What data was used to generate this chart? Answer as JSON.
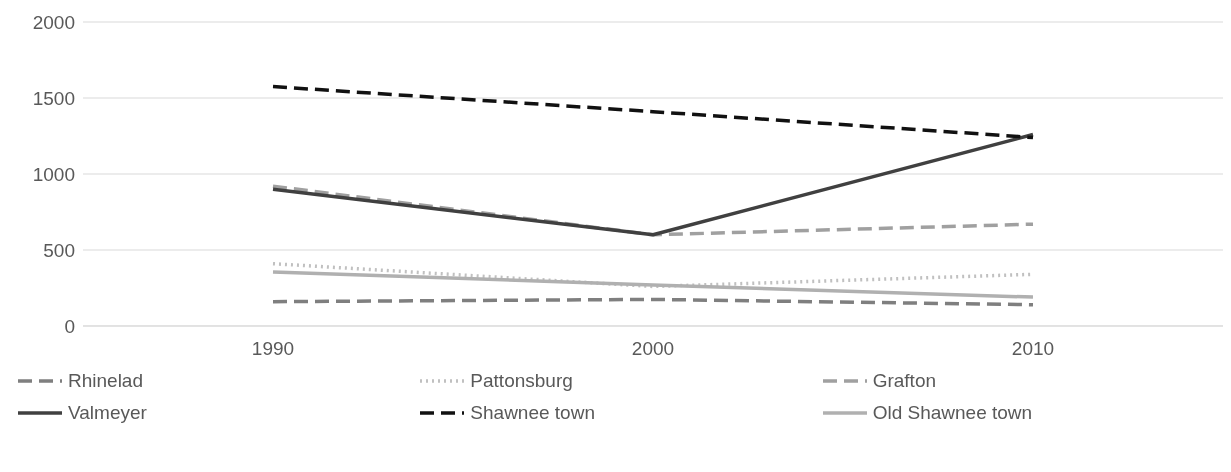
{
  "chart_data": {
    "type": "line",
    "categories": [
      "1990",
      "2000",
      "2010"
    ],
    "series": [
      {
        "name": "Rhinelad",
        "color": "#7f7f7f",
        "line_style": "dashed",
        "values": [
          160,
          175,
          140
        ]
      },
      {
        "name": "Pattonsburg",
        "color": "#c0c0c0",
        "line_style": "dotted",
        "values": [
          410,
          260,
          340
        ]
      },
      {
        "name": "Grafton",
        "color": "#a0a0a0",
        "line_style": "dashed",
        "values": [
          920,
          600,
          670
        ]
      },
      {
        "name": "Valmeyer",
        "color": "#404040",
        "line_style": "solid",
        "values": [
          900,
          600,
          1260
        ]
      },
      {
        "name": "Shawnee town",
        "color": "#111111",
        "line_style": "dashed",
        "values": [
          1575,
          1410,
          1240
        ]
      },
      {
        "name": "Old Shawnee town",
        "color": "#b0b0b0",
        "line_style": "solid",
        "values": [
          355,
          270,
          190
        ]
      }
    ],
    "ylim": [
      0,
      2000
    ],
    "yticks": [
      0,
      500,
      1000,
      1500,
      2000
    ],
    "grid": "y",
    "legend": "bottom",
    "marker": "none"
  }
}
